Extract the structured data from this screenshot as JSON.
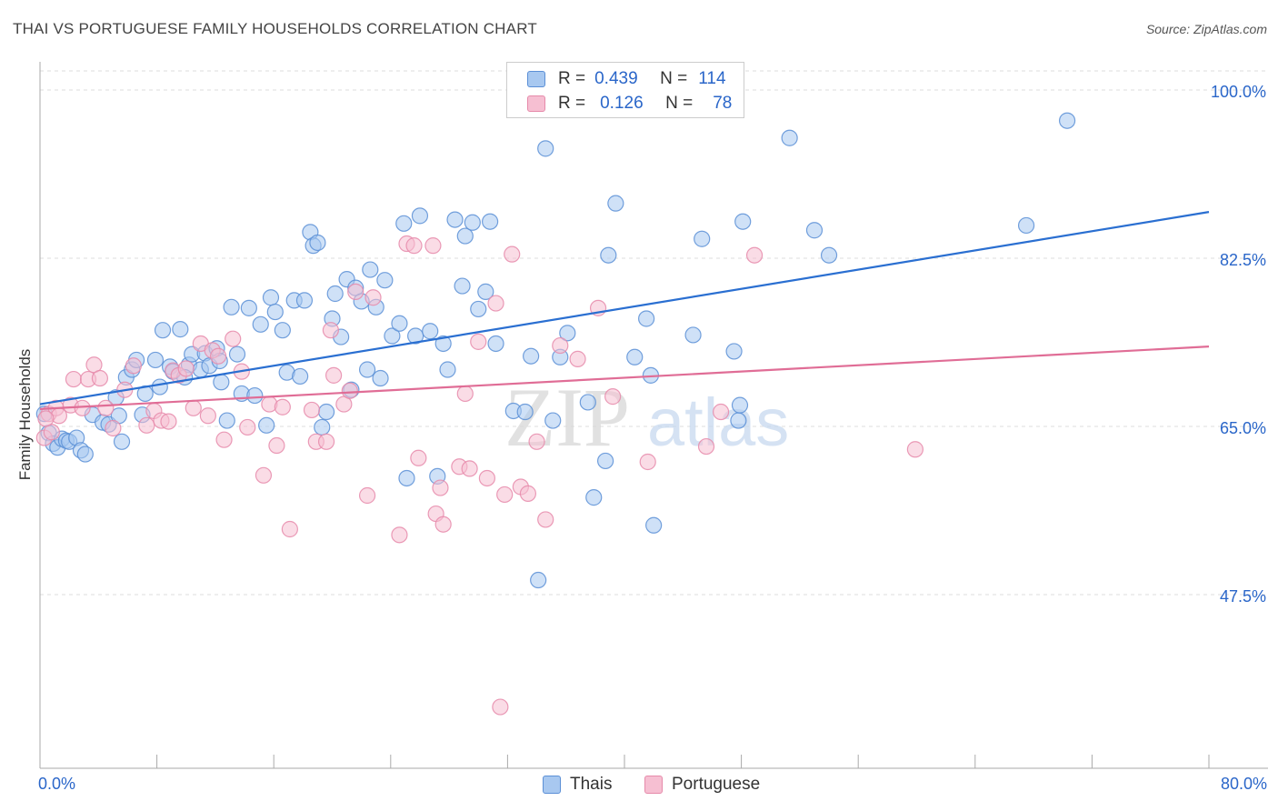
{
  "title": "THAI VS PORTUGUESE FAMILY HOUSEHOLDS CORRELATION CHART",
  "source": "Source: ZipAtlas.com",
  "watermark": {
    "zip": "ZIP",
    "atlas": "atlas"
  },
  "legend_top": {
    "rows": [
      {
        "r_label": "R =",
        "r_value": "0.439",
        "n_label": "N =",
        "n_value": "114"
      },
      {
        "r_label": "R =",
        "r_value": "0.126",
        "n_label": "N =",
        "n_value": "78"
      }
    ]
  },
  "colors": {
    "thais_fill": "#a8c8f0",
    "thais_stroke": "#5b8fd6",
    "thais_line": "#2a6fd1",
    "portuguese_fill": "#f6bfd2",
    "portuguese_stroke": "#e68aaa",
    "portuguese_line": "#e06d96",
    "axis_label": "#2a66c9",
    "grid": "#dddddd"
  },
  "chart_data": {
    "type": "scatter",
    "title": "THAI VS PORTUGUESE FAMILY HOUSEHOLDS CORRELATION CHART",
    "xlabel": "",
    "ylabel": "Family Households",
    "xlim": [
      0,
      80
    ],
    "ylim": [
      32,
      102
    ],
    "x_tick_labels": [
      "0.0%",
      "80.0%"
    ],
    "y_ticks": [
      47.5,
      65.0,
      82.5,
      100.0
    ],
    "y_tick_labels": [
      "47.5%",
      "65.0%",
      "82.5%",
      "100.0%"
    ],
    "grid": true,
    "legend_placement": "bottom",
    "series": [
      {
        "name": "Thais",
        "r": 0.439,
        "n": 114,
        "trend": [
          [
            0,
            67.5
          ],
          [
            80,
            87.5
          ]
        ],
        "points": [
          [
            0.3,
            66.5
          ],
          [
            0.6,
            64.5
          ],
          [
            0.9,
            63.4
          ],
          [
            1.2,
            63.0
          ],
          [
            1.5,
            63.9
          ],
          [
            1.8,
            63.7
          ],
          [
            2.0,
            63.6
          ],
          [
            2.5,
            64.0
          ],
          [
            2.8,
            62.7
          ],
          [
            3.1,
            62.3
          ],
          [
            3.6,
            66.4
          ],
          [
            4.3,
            65.6
          ],
          [
            4.7,
            65.4
          ],
          [
            5.2,
            68.2
          ],
          [
            5.4,
            66.3
          ],
          [
            5.6,
            63.6
          ],
          [
            5.9,
            70.3
          ],
          [
            6.3,
            71.1
          ],
          [
            6.6,
            72.1
          ],
          [
            7.0,
            66.4
          ],
          [
            7.2,
            68.6
          ],
          [
            7.9,
            72.1
          ],
          [
            8.2,
            69.3
          ],
          [
            8.4,
            75.2
          ],
          [
            8.9,
            71.4
          ],
          [
            9.1,
            70.9
          ],
          [
            9.6,
            75.3
          ],
          [
            10.2,
            71.6
          ],
          [
            10.4,
            72.7
          ],
          [
            11.0,
            71.1
          ],
          [
            11.3,
            72.8
          ],
          [
            11.6,
            71.5
          ],
          [
            12.1,
            73.3
          ],
          [
            12.4,
            69.8
          ],
          [
            12.8,
            65.8
          ],
          [
            13.1,
            77.6
          ],
          [
            13.5,
            72.7
          ],
          [
            13.8,
            68.6
          ],
          [
            14.3,
            77.5
          ],
          [
            14.7,
            68.4
          ],
          [
            15.1,
            75.8
          ],
          [
            15.5,
            65.3
          ],
          [
            15.8,
            78.6
          ],
          [
            16.1,
            77.1
          ],
          [
            16.6,
            75.2
          ],
          [
            16.9,
            70.8
          ],
          [
            17.4,
            78.3
          ],
          [
            17.8,
            70.4
          ],
          [
            18.1,
            78.3
          ],
          [
            18.5,
            85.4
          ],
          [
            18.7,
            84.0
          ],
          [
            19.0,
            84.3
          ],
          [
            19.3,
            65.1
          ],
          [
            19.6,
            66.7
          ],
          [
            20.0,
            76.4
          ],
          [
            20.2,
            79.0
          ],
          [
            20.6,
            74.5
          ],
          [
            21.0,
            80.5
          ],
          [
            21.3,
            69.0
          ],
          [
            21.6,
            79.6
          ],
          [
            22.0,
            78.2
          ],
          [
            22.4,
            71.1
          ],
          [
            22.6,
            81.5
          ],
          [
            23.0,
            77.6
          ],
          [
            23.3,
            70.2
          ],
          [
            23.6,
            80.4
          ],
          [
            24.1,
            74.6
          ],
          [
            24.6,
            75.9
          ],
          [
            24.9,
            86.3
          ],
          [
            25.1,
            59.8
          ],
          [
            25.7,
            74.6
          ],
          [
            26.0,
            87.1
          ],
          [
            26.7,
            75.1
          ],
          [
            27.2,
            60.0
          ],
          [
            27.6,
            73.8
          ],
          [
            27.9,
            71.1
          ],
          [
            28.4,
            86.7
          ],
          [
            28.9,
            79.8
          ],
          [
            29.1,
            85.0
          ],
          [
            29.6,
            86.4
          ],
          [
            30.0,
            77.4
          ],
          [
            30.5,
            79.2
          ],
          [
            30.8,
            86.5
          ],
          [
            31.2,
            73.8
          ],
          [
            32.4,
            66.8
          ],
          [
            33.2,
            66.7
          ],
          [
            33.6,
            72.5
          ],
          [
            34.1,
            49.2
          ],
          [
            34.6,
            94.1
          ],
          [
            35.1,
            65.8
          ],
          [
            35.6,
            72.4
          ],
          [
            36.1,
            74.9
          ],
          [
            37.5,
            67.7
          ],
          [
            37.9,
            57.8
          ],
          [
            38.7,
            61.6
          ],
          [
            38.9,
            83.0
          ],
          [
            39.4,
            88.4
          ],
          [
            40.7,
            72.4
          ],
          [
            41.5,
            76.4
          ],
          [
            41.8,
            70.5
          ],
          [
            42.0,
            54.9
          ],
          [
            44.7,
            74.7
          ],
          [
            45.3,
            84.7
          ],
          [
            47.5,
            73.0
          ],
          [
            47.8,
            65.8
          ],
          [
            47.9,
            67.4
          ],
          [
            48.1,
            86.5
          ],
          [
            51.3,
            95.2
          ],
          [
            53.0,
            85.6
          ],
          [
            54.0,
            83.0
          ],
          [
            67.5,
            86.1
          ],
          [
            70.3,
            97.0
          ],
          [
            9.9,
            70.3
          ],
          [
            12.3,
            72.0
          ]
        ]
      },
      {
        "name": "Portuguese",
        "r": 0.126,
        "n": 78,
        "trend": [
          [
            0,
            67.0
          ],
          [
            80,
            73.5
          ]
        ],
        "points": [
          [
            0.3,
            64.0
          ],
          [
            0.6,
            66.5
          ],
          [
            0.8,
            64.6
          ],
          [
            1.1,
            67.1
          ],
          [
            1.3,
            66.3
          ],
          [
            2.1,
            67.4
          ],
          [
            2.3,
            70.1
          ],
          [
            2.9,
            67.1
          ],
          [
            3.3,
            70.1
          ],
          [
            3.7,
            71.6
          ],
          [
            4.1,
            70.2
          ],
          [
            4.5,
            67.1
          ],
          [
            5.0,
            65.0
          ],
          [
            5.8,
            69.0
          ],
          [
            6.4,
            71.5
          ],
          [
            7.3,
            65.3
          ],
          [
            7.8,
            66.8
          ],
          [
            8.3,
            65.8
          ],
          [
            8.8,
            65.7
          ],
          [
            9.1,
            71.0
          ],
          [
            9.5,
            70.5
          ],
          [
            10.0,
            71.2
          ],
          [
            10.5,
            67.1
          ],
          [
            11.0,
            73.8
          ],
          [
            11.5,
            66.3
          ],
          [
            11.8,
            73.1
          ],
          [
            12.2,
            72.5
          ],
          [
            12.6,
            63.8
          ],
          [
            13.2,
            74.3
          ],
          [
            13.8,
            70.9
          ],
          [
            14.2,
            65.1
          ],
          [
            15.3,
            60.1
          ],
          [
            15.7,
            67.5
          ],
          [
            16.2,
            63.2
          ],
          [
            16.6,
            67.2
          ],
          [
            17.1,
            54.5
          ],
          [
            18.6,
            66.9
          ],
          [
            18.9,
            63.6
          ],
          [
            19.6,
            63.6
          ],
          [
            19.9,
            75.2
          ],
          [
            20.1,
            70.5
          ],
          [
            20.8,
            67.5
          ],
          [
            21.2,
            68.9
          ],
          [
            21.6,
            79.2
          ],
          [
            22.4,
            58.0
          ],
          [
            22.8,
            78.6
          ],
          [
            24.6,
            53.9
          ],
          [
            25.1,
            84.2
          ],
          [
            25.6,
            84.0
          ],
          [
            25.9,
            61.9
          ],
          [
            26.9,
            84.0
          ],
          [
            27.1,
            56.1
          ],
          [
            27.4,
            58.8
          ],
          [
            27.6,
            55.0
          ],
          [
            28.7,
            61.0
          ],
          [
            29.1,
            68.6
          ],
          [
            29.4,
            60.8
          ],
          [
            30.0,
            74.0
          ],
          [
            30.6,
            59.8
          ],
          [
            31.2,
            78.0
          ],
          [
            31.8,
            58.1
          ],
          [
            32.3,
            83.1
          ],
          [
            32.9,
            58.9
          ],
          [
            33.4,
            58.2
          ],
          [
            34.0,
            63.6
          ],
          [
            34.6,
            55.5
          ],
          [
            35.6,
            73.6
          ],
          [
            36.0,
            100.0
          ],
          [
            36.8,
            72.2
          ],
          [
            38.2,
            77.5
          ],
          [
            39.2,
            68.3
          ],
          [
            41.6,
            61.5
          ],
          [
            45.6,
            63.1
          ],
          [
            46.6,
            66.7
          ],
          [
            48.9,
            83.0
          ],
          [
            59.9,
            62.8
          ],
          [
            31.5,
            36.0
          ],
          [
            0.4,
            66.0
          ]
        ]
      }
    ]
  },
  "bottom_legend": {
    "items": [
      "Thais",
      "Portuguese"
    ]
  }
}
